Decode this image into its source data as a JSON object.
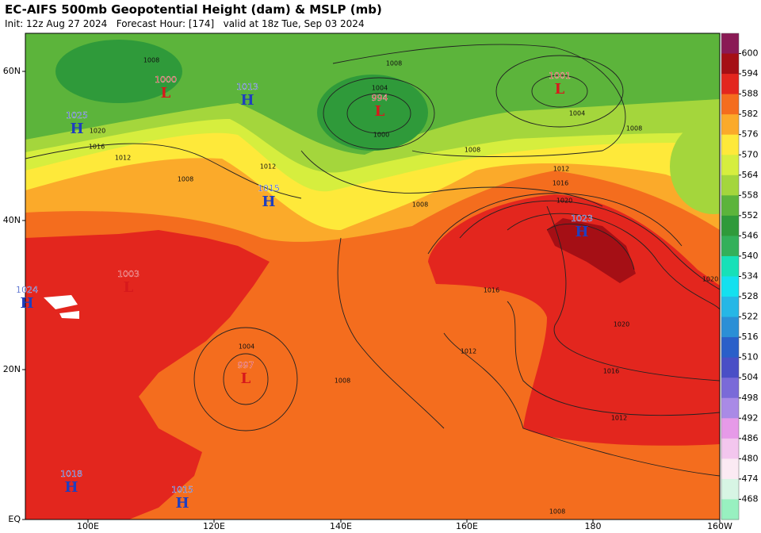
{
  "header": {
    "title": "EC-AIFS 500mb Geopotential Height (dam) & MSLP (mb)",
    "subtitle": "Init: 12z Aug 27 2024   Forecast Hour: [174]   valid at 18z Tue, Sep 03 2024"
  },
  "map": {
    "lat_labels": [
      "60N",
      "40N",
      "20N",
      "EQ"
    ],
    "lon_labels": [
      "100E",
      "120E",
      "140E",
      "160E",
      "180",
      "160W"
    ],
    "pressure_centers": [
      {
        "letter": "L",
        "value": 1000
      },
      {
        "letter": "H",
        "value": 1025
      },
      {
        "letter": "H",
        "value": 1013
      },
      {
        "letter": "L",
        "value": 994
      },
      {
        "letter": "L",
        "value": 1001
      },
      {
        "letter": "H",
        "value": 1015
      },
      {
        "letter": "H",
        "value": 1023
      },
      {
        "letter": "H",
        "value": 1024
      },
      {
        "letter": "L",
        "value": 1003
      },
      {
        "letter": "L",
        "value": 997
      },
      {
        "letter": "H",
        "value": 1018
      },
      {
        "letter": "H",
        "value": 1015
      }
    ],
    "isobar_labels": [
      1008,
      1008,
      1004,
      1000,
      1004,
      1008,
      1008,
      1012,
      1016,
      1020,
      1008,
      1020,
      1016,
      1020,
      1012,
      1016,
      1012,
      1004,
      1008,
      1008,
      1012,
      1016,
      1020,
      1012,
      1008
    ]
  },
  "colorbar": {
    "colors": [
      "#8a1a55",
      "#a50f15",
      "#e3261e",
      "#f46d1e",
      "#fbaa2a",
      "#fee93a",
      "#d6ee3e",
      "#a4d63c",
      "#5cb43b",
      "#2f9a3a",
      "#33b05a",
      "#17e0b8",
      "#14e0ef",
      "#26b7e6",
      "#2b8fd6",
      "#2a5fc9",
      "#4a4fc6",
      "#7a6ad8",
      "#a98ae6",
      "#e69ae8",
      "#f3c6ee",
      "#fbeaf3",
      "#d7f5e4",
      "#98f0c0"
    ],
    "ticks": [
      600,
      594,
      588,
      582,
      576,
      570,
      564,
      558,
      552,
      546,
      540,
      534,
      528,
      522,
      516,
      510,
      504,
      498,
      492,
      486,
      480,
      474,
      468
    ]
  }
}
